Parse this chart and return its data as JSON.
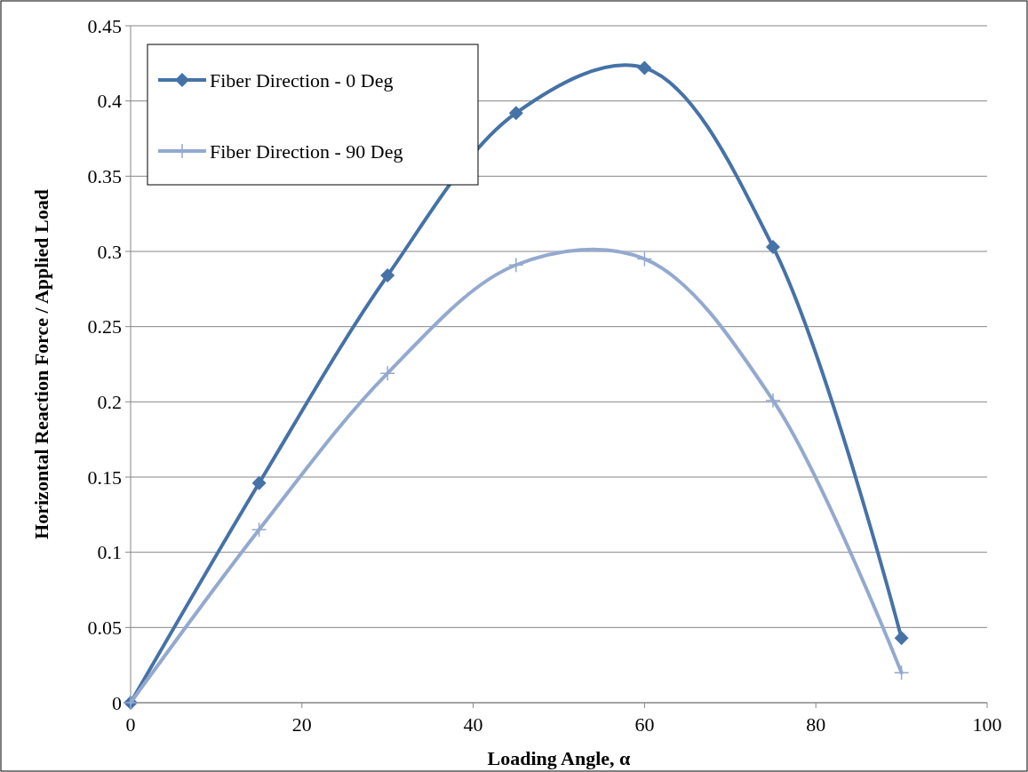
{
  "chart_data": {
    "type": "line",
    "xlabel": "Loading Angle, α",
    "ylabel": "Horizontal Reaction Force / Applied Load",
    "x": [
      0,
      15,
      30,
      45,
      60,
      75,
      90
    ],
    "series": [
      {
        "name": "Fiber Direction - 0 Deg",
        "color": "#4572a7",
        "marker": "diamond",
        "values": [
          0,
          0.146,
          0.284,
          0.392,
          0.422,
          0.303,
          0.043
        ]
      },
      {
        "name": "Fiber Direction - 90 Deg",
        "color": "#93a9cf",
        "marker": "cross",
        "values": [
          0,
          0.115,
          0.219,
          0.291,
          0.295,
          0.201,
          0.02
        ]
      }
    ],
    "xlim": [
      0,
      100
    ],
    "xticks": [
      0,
      20,
      40,
      60,
      80,
      100
    ],
    "ylim": [
      0,
      0.45
    ],
    "yticks": [
      0,
      0.05,
      0.1,
      0.15,
      0.2,
      0.25,
      0.3,
      0.35,
      0.4,
      0.45
    ],
    "grid": "y",
    "legend": "top left",
    "line_style": "solid"
  }
}
